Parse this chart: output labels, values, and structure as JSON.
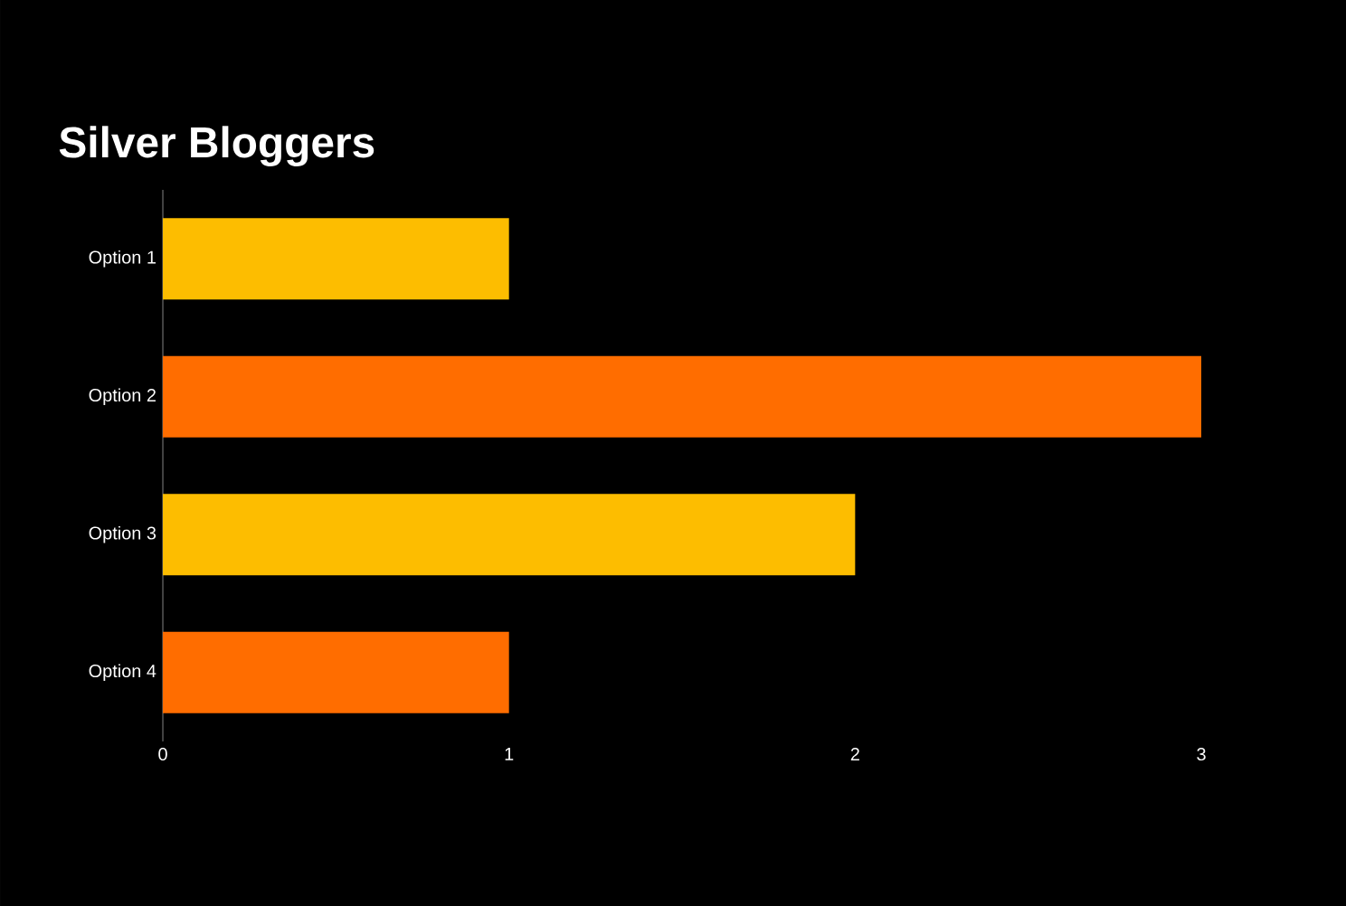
{
  "chart_data": {
    "type": "bar",
    "orientation": "horizontal",
    "title": "Silver Bloggers",
    "categories": [
      "Option 1",
      "Option 2",
      "Option 3",
      "Option 4"
    ],
    "values": [
      1,
      3,
      2,
      1
    ],
    "colors": [
      "#fdbd00",
      "#ff6d00",
      "#fdbd00",
      "#ff6d00"
    ],
    "xlim": [
      0,
      3
    ],
    "xticks": [
      0,
      1,
      2,
      3
    ],
    "grid": false
  }
}
